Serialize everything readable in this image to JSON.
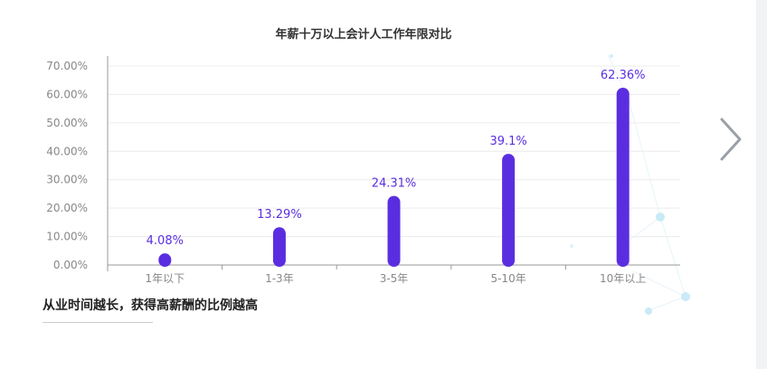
{
  "chart_data": {
    "type": "bar",
    "title": "年薪十万以上会计人工作年限对比",
    "categories": [
      "1年以下",
      "1-3年",
      "3-5年",
      "5-10年",
      "10年以上"
    ],
    "values": [
      4.08,
      13.29,
      24.31,
      39.1,
      62.36
    ],
    "data_labels": [
      "4.08%",
      "13.29%",
      "24.31%",
      "39.1%",
      "62.36%"
    ],
    "yticks": [
      "0.00%",
      "10.00%",
      "20.00%",
      "30.00%",
      "40.00%",
      "50.00%",
      "60.00%",
      "70.00%"
    ],
    "ylim": [
      0,
      70
    ],
    "ylabel": "",
    "xlabel": "",
    "grid": true,
    "bar_color": "#5a2ee0",
    "label_color": "#5a2ee0"
  },
  "caption": "从业时间越长，获得高薪酬的比例越高",
  "nav": {
    "next_icon": "chevron-right-icon"
  }
}
